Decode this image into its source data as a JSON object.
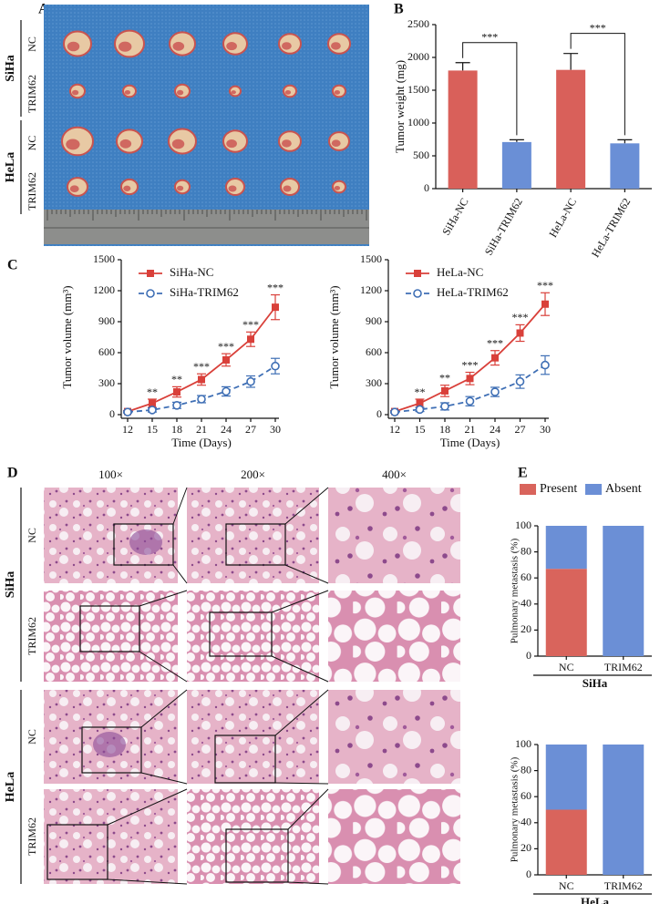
{
  "panels": [
    "A",
    "B",
    "C",
    "D",
    "E"
  ],
  "photo_a": {
    "groups": [
      {
        "label": "SiHa",
        "rows": [
          "NC",
          "TRIM62"
        ]
      },
      {
        "label": "HeLa",
        "rows": [
          "NC",
          "TRIM62"
        ]
      }
    ]
  },
  "histology": {
    "columns": [
      "100×",
      "200×",
      "400×"
    ],
    "groups": [
      {
        "label": "SiHa",
        "rows": [
          "NC",
          "TRIM62"
        ]
      },
      {
        "label": "HeLa",
        "rows": [
          "NC",
          "TRIM62"
        ]
      }
    ]
  },
  "chart_data": [
    {
      "type": "bar",
      "ylabel": "Tumor weight (mg)",
      "categories": [
        "SiHa-NC",
        "SiHa-TRIM62",
        "HeLa-NC",
        "HeLa-TRIM62"
      ],
      "values": [
        1800,
        710,
        1810,
        690
      ],
      "errors": [
        120,
        35,
        250,
        55
      ],
      "colors": [
        "#d9605a",
        "#6a8fd6",
        "#d9605a",
        "#6a8fd6"
      ],
      "ylim": [
        0,
        2500
      ],
      "yticks": [
        0,
        500,
        1000,
        1500,
        2000,
        2500
      ],
      "significance": [
        "***",
        "***"
      ]
    },
    {
      "type": "line",
      "ylabel": "Tumor volume (mm³)",
      "xlabel": "Time (Days)",
      "x": [
        12,
        15,
        18,
        21,
        24,
        27,
        30
      ],
      "xlim": [
        12,
        30
      ],
      "xticks": [
        12,
        15,
        18,
        21,
        24,
        27,
        30
      ],
      "ylim": [
        0,
        1500
      ],
      "yticks": [
        0,
        300,
        600,
        900,
        1200,
        1500
      ],
      "legend": "upper left",
      "series": [
        {
          "name": "SiHa-NC",
          "color": "#d9403a",
          "marker": "square",
          "linestyle": "solid",
          "values": [
            30,
            110,
            220,
            340,
            530,
            730,
            1040
          ],
          "errors": [
            10,
            40,
            50,
            55,
            60,
            70,
            120
          ]
        },
        {
          "name": "SiHa-TRIM62",
          "color": "#3f6fb5",
          "marker": "circle-open",
          "linestyle": "dashed",
          "values": [
            25,
            45,
            90,
            150,
            225,
            320,
            470
          ],
          "errors": [
            8,
            20,
            30,
            35,
            45,
            55,
            75
          ]
        }
      ],
      "significance": [
        null,
        "**",
        "**",
        "***",
        "***",
        "***",
        "***"
      ]
    },
    {
      "type": "line",
      "ylabel": "Tumor volume (mm³)",
      "xlabel": "Time (Days)",
      "x": [
        12,
        15,
        18,
        21,
        24,
        27,
        30
      ],
      "xlim": [
        12,
        30
      ],
      "xticks": [
        12,
        15,
        18,
        21,
        24,
        27,
        30
      ],
      "ylim": [
        0,
        1500
      ],
      "yticks": [
        0,
        300,
        600,
        900,
        1200,
        1500
      ],
      "legend": "upper left",
      "series": [
        {
          "name": "HeLa-NC",
          "color": "#d9403a",
          "marker": "square",
          "linestyle": "solid",
          "values": [
            30,
            110,
            230,
            350,
            550,
            790,
            1070
          ],
          "errors": [
            10,
            40,
            55,
            60,
            70,
            80,
            110
          ]
        },
        {
          "name": "HeLa-TRIM62",
          "color": "#3f6fb5",
          "marker": "circle-open",
          "linestyle": "dashed",
          "values": [
            25,
            50,
            80,
            130,
            220,
            320,
            480
          ],
          "errors": [
            8,
            20,
            35,
            45,
            45,
            65,
            90
          ]
        }
      ],
      "significance": [
        null,
        "**",
        "**",
        "***",
        "***",
        "***",
        "***"
      ]
    },
    {
      "type": "stacked_bar",
      "ylabel": "Pulmonary metastasis (%)",
      "xlabel": "SiHa",
      "categories": [
        "NC",
        "TRIM62"
      ],
      "ylim": [
        0,
        100
      ],
      "yticks": [
        0,
        20,
        40,
        60,
        80,
        100
      ],
      "legend": "top",
      "series": [
        {
          "name": "Present",
          "color": "#d9645c",
          "values": [
            67,
            0
          ]
        },
        {
          "name": "Absent",
          "color": "#6b8fd6",
          "values": [
            33,
            100
          ]
        }
      ]
    },
    {
      "type": "stacked_bar",
      "ylabel": "Pulmonary metastasis (%)",
      "xlabel": "HeLa",
      "categories": [
        "NC",
        "TRIM62"
      ],
      "ylim": [
        0,
        100
      ],
      "yticks": [
        0,
        20,
        40,
        60,
        80,
        100
      ],
      "series": [
        {
          "color": "#d9645c",
          "values": [
            50,
            0
          ]
        },
        {
          "color": "#6b8fd6",
          "values": [
            50,
            100
          ]
        }
      ]
    }
  ]
}
